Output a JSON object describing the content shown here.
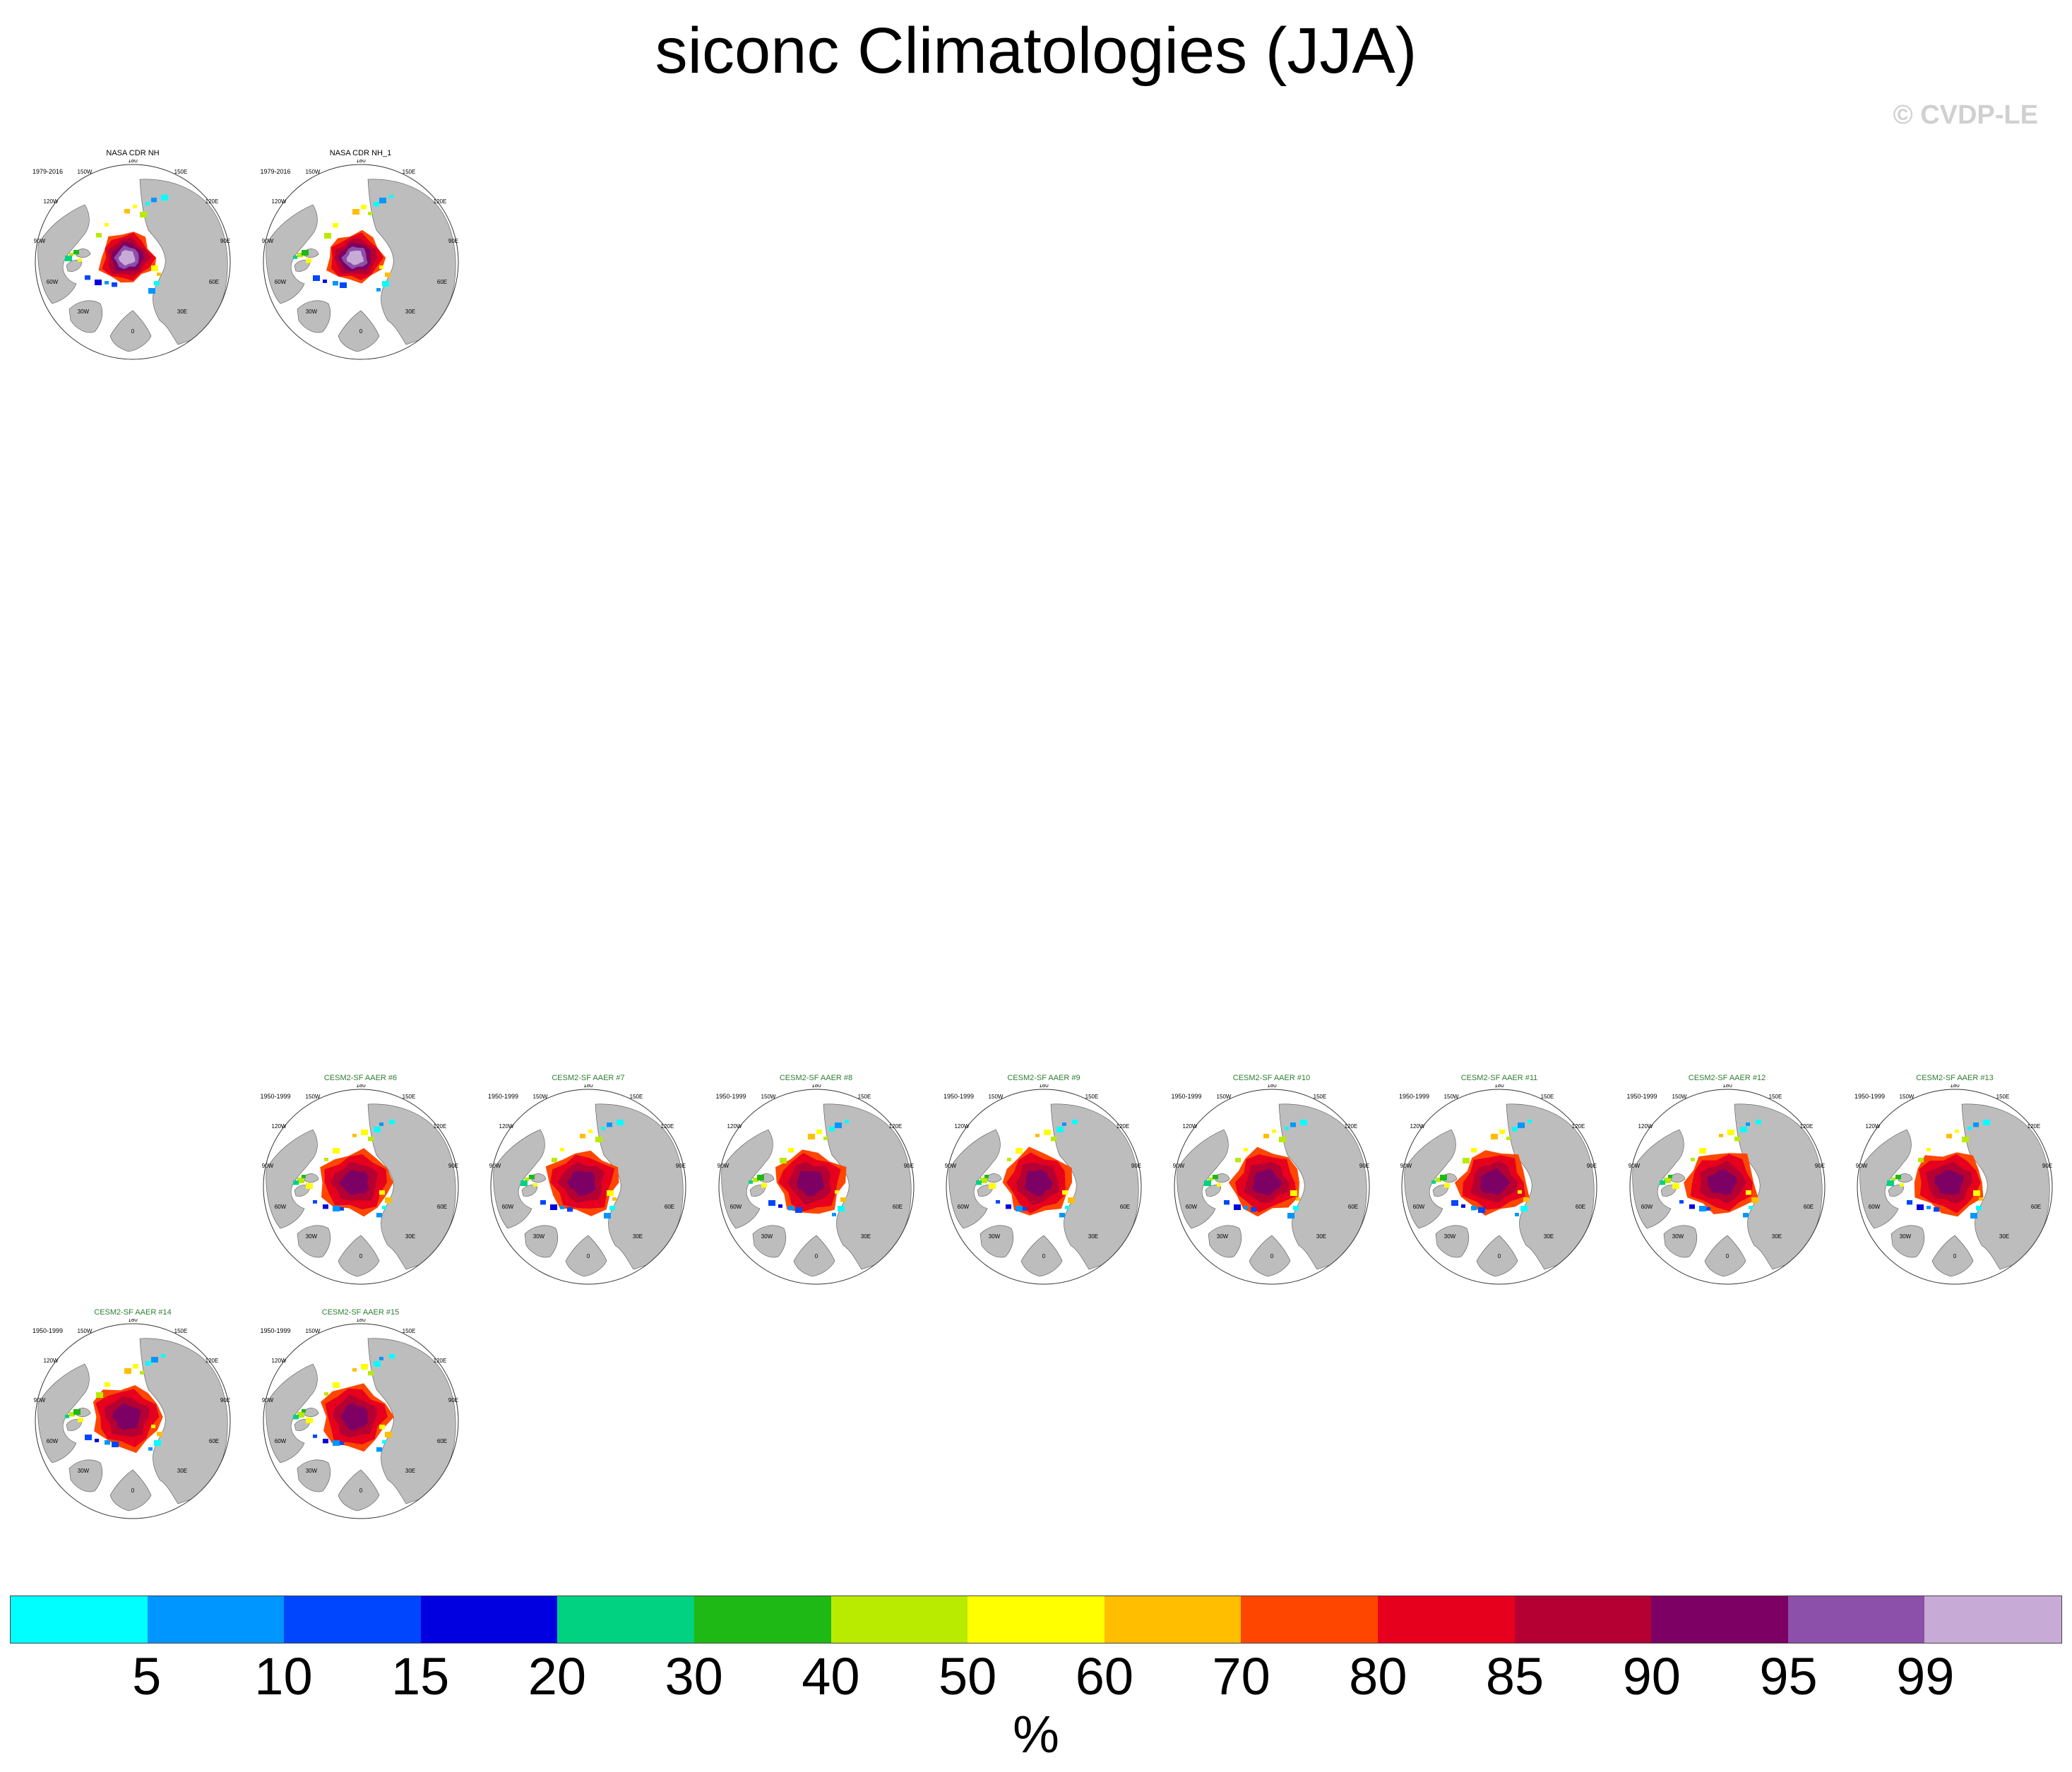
{
  "title": "siconc Climatologies (JJA)",
  "watermark": "© CVDP-LE",
  "panels": [
    {
      "title": "NASA CDR NH",
      "period": "1979-2016",
      "kind": "obs",
      "row": 0,
      "col": 0,
      "extent": 0.75
    },
    {
      "title": "NASA CDR NH_1",
      "period": "1979-2016",
      "kind": "obs",
      "row": 0,
      "col": 1,
      "extent": 0.75
    },
    {
      "title": "CESM2-SF AAER #6",
      "period": "1950-1999",
      "kind": "model",
      "row": 4,
      "col": 1,
      "extent": 0.95
    },
    {
      "title": "CESM2-SF AAER #7",
      "period": "1950-1999",
      "kind": "model",
      "row": 4,
      "col": 2,
      "extent": 0.95
    },
    {
      "title": "CESM2-SF AAER #8",
      "period": "1950-1999",
      "kind": "model",
      "row": 4,
      "col": 3,
      "extent": 0.95
    },
    {
      "title": "CESM2-SF AAER #9",
      "period": "1950-1999",
      "kind": "model",
      "row": 4,
      "col": 4,
      "extent": 0.95
    },
    {
      "title": "CESM2-SF AAER #10",
      "period": "1950-1999",
      "kind": "model",
      "row": 4,
      "col": 5,
      "extent": 0.95
    },
    {
      "title": "CESM2-SF AAER #11",
      "period": "1950-1999",
      "kind": "model",
      "row": 4,
      "col": 6,
      "extent": 0.95
    },
    {
      "title": "CESM2-SF AAER #12",
      "period": "1950-1999",
      "kind": "model",
      "row": 4,
      "col": 7,
      "extent": 0.95
    },
    {
      "title": "CESM2-SF AAER #13",
      "period": "1950-1999",
      "kind": "model",
      "row": 4,
      "col": 8,
      "extent": 0.95
    },
    {
      "title": "CESM2-SF AAER #14",
      "period": "1950-1999",
      "kind": "model",
      "row": 5,
      "col": 0,
      "extent": 0.95
    },
    {
      "title": "CESM2-SF AAER #15",
      "period": "1950-1999",
      "kind": "model",
      "row": 5,
      "col": 1,
      "extent": 0.95
    }
  ],
  "longitude_labels": [
    "180",
    "150E",
    "120E",
    "90E",
    "60E",
    "30E",
    "0",
    "30W",
    "60W",
    "90W",
    "120W",
    "150W"
  ],
  "colorbar": {
    "colors": [
      "#00ffff",
      "#0096ff",
      "#0046ff",
      "#0000e1",
      "#00d282",
      "#1eb914",
      "#b9eb00",
      "#ffff00",
      "#ffbe00",
      "#ff4600",
      "#e6001e",
      "#b40032",
      "#7d0064",
      "#8c50aa",
      "#c8aad7"
    ],
    "labels": [
      "5",
      "10",
      "15",
      "20",
      "30",
      "40",
      "50",
      "60",
      "70",
      "80",
      "85",
      "90",
      "95",
      "99"
    ],
    "units": "%"
  },
  "map_colors": {
    "land": "#bdbdbd",
    "ocean": "#ffffff"
  }
}
